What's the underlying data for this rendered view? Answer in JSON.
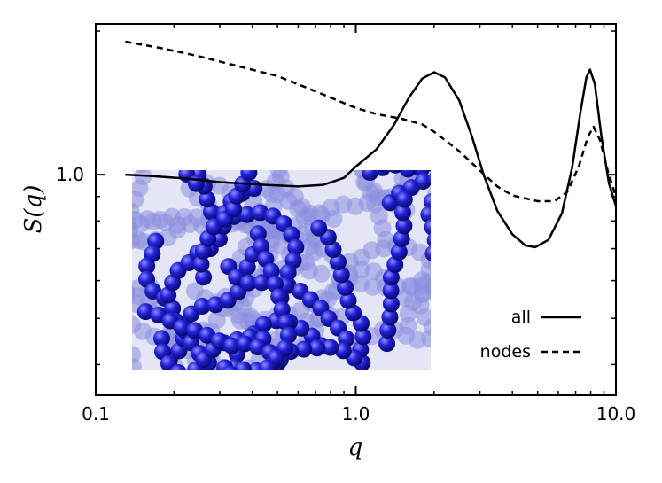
{
  "chart_data": {
    "type": "line",
    "xlabel": "q",
    "ylabel": "S(q)",
    "xscale": "log",
    "yscale": "log",
    "xlim": [
      0.1,
      10.0
    ],
    "ylim": [
      0.345,
      2.07
    ],
    "x_ticks": [
      {
        "value": 0.1,
        "label": "0.1"
      },
      {
        "value": 1.0,
        "label": "1.0"
      },
      {
        "value": 10.0,
        "label": "10.0"
      }
    ],
    "y_ticks": [
      {
        "value": 1.0,
        "label": "1.0"
      }
    ],
    "grid": false,
    "legend": {
      "position": "bottom-right"
    },
    "inset": {
      "content": "molecular rendering of blue bead-spring polymer chains",
      "bead_color": "#1a1acc",
      "background_color": "#e4e6f6"
    },
    "series": [
      {
        "name": "all",
        "style": "solid",
        "color": "#000000",
        "points": [
          [
            0.13,
            1.0
          ],
          [
            0.16,
            0.994
          ],
          [
            0.22,
            0.982
          ],
          [
            0.3,
            0.965
          ],
          [
            0.45,
            0.952
          ],
          [
            0.6,
            0.945
          ],
          [
            0.75,
            0.952
          ],
          [
            0.9,
            0.985
          ],
          [
            1.0,
            1.04
          ],
          [
            1.2,
            1.13
          ],
          [
            1.4,
            1.27
          ],
          [
            1.6,
            1.45
          ],
          [
            1.8,
            1.59
          ],
          [
            2.0,
            1.64
          ],
          [
            2.2,
            1.6
          ],
          [
            2.5,
            1.43
          ],
          [
            2.8,
            1.2
          ],
          [
            3.1,
            1.0
          ],
          [
            3.5,
            0.84
          ],
          [
            4.0,
            0.75
          ],
          [
            4.5,
            0.71
          ],
          [
            4.9,
            0.705
          ],
          [
            5.5,
            0.73
          ],
          [
            6.2,
            0.83
          ],
          [
            6.8,
            1.04
          ],
          [
            7.3,
            1.35
          ],
          [
            7.7,
            1.6
          ],
          [
            7.95,
            1.66
          ],
          [
            8.3,
            1.55
          ],
          [
            8.8,
            1.2
          ],
          [
            9.4,
            0.96
          ],
          [
            10.0,
            0.86
          ]
        ]
      },
      {
        "name": "nodes",
        "style": "dashed",
        "color": "#000000",
        "points": [
          [
            0.13,
            1.9
          ],
          [
            0.18,
            1.84
          ],
          [
            0.25,
            1.77
          ],
          [
            0.35,
            1.69
          ],
          [
            0.5,
            1.61
          ],
          [
            0.65,
            1.52
          ],
          [
            0.8,
            1.45
          ],
          [
            1.0,
            1.38
          ],
          [
            1.2,
            1.34
          ],
          [
            1.5,
            1.31
          ],
          [
            1.8,
            1.275
          ],
          [
            2.0,
            1.23
          ],
          [
            2.5,
            1.12
          ],
          [
            3.0,
            1.02
          ],
          [
            3.5,
            0.945
          ],
          [
            4.0,
            0.905
          ],
          [
            5.0,
            0.88
          ],
          [
            5.8,
            0.88
          ],
          [
            6.5,
            0.92
          ],
          [
            7.2,
            1.04
          ],
          [
            7.8,
            1.2
          ],
          [
            8.2,
            1.26
          ],
          [
            8.7,
            1.18
          ],
          [
            9.3,
            1.02
          ],
          [
            10.0,
            0.9
          ]
        ]
      }
    ]
  }
}
